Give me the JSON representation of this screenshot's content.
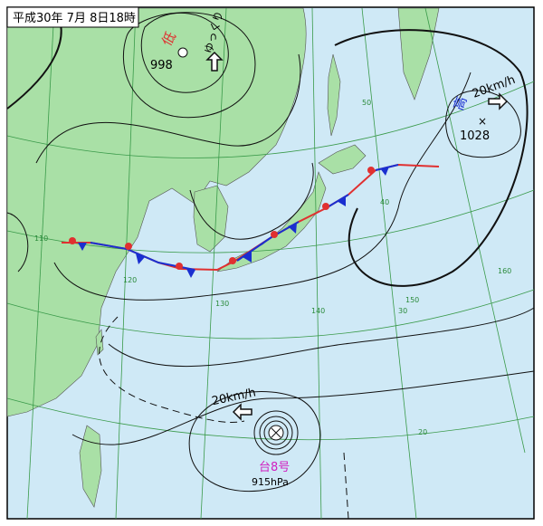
{
  "header": {
    "title": "平成30年 7月 8日18時"
  },
  "low": {
    "symbol": "低",
    "pressure": "998",
    "motion": "ゆっくり"
  },
  "high": {
    "symbol": "高",
    "speed": "20km/h",
    "pressure": "1028"
  },
  "typhoon": {
    "name": "台8号",
    "pressure": "915hPa",
    "speed": "20km/h"
  },
  "grid_labels": {
    "latitudes": [
      "50",
      "40",
      "30",
      "20"
    ],
    "longitudes": [
      "110",
      "120",
      "130",
      "140",
      "150",
      "160"
    ]
  }
}
